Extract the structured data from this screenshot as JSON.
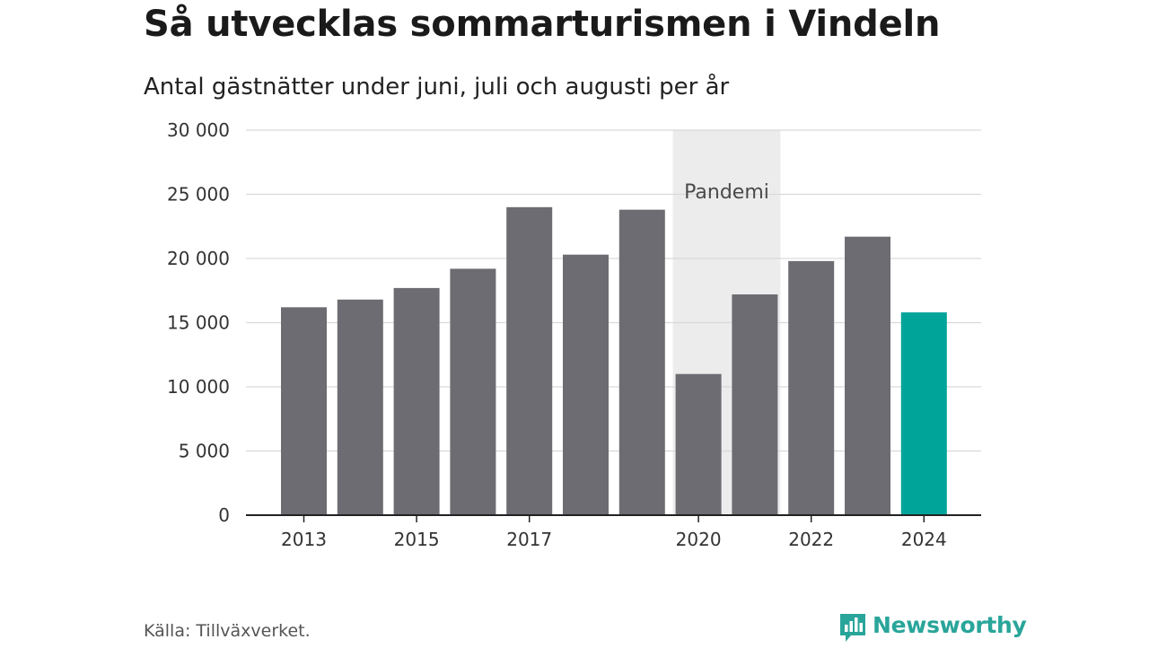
{
  "header": {
    "title": "Så utvecklas sommarturismen i Vindeln",
    "subtitle": "Antal gästnätter under juni, juli och augusti per år"
  },
  "footer": {
    "source": "Källa: Tillväxverket.",
    "brand": "Newsworthy",
    "logo_icon": "bar-chart-speech-bubble-icon"
  },
  "colors": {
    "bar_default": "#6d6c72",
    "bar_highlight": "#00a499",
    "band": "#ececec",
    "grid": "#d9d9d9",
    "axis": "#222222",
    "brand": "#29a59a"
  },
  "chart_data": {
    "type": "bar",
    "categories": [
      "2013",
      "2014",
      "2015",
      "2016",
      "2017",
      "2018",
      "2019",
      "2020",
      "2021",
      "2022",
      "2023",
      "2024"
    ],
    "values": [
      16200,
      16800,
      17700,
      19200,
      24000,
      20300,
      23800,
      11000,
      17200,
      19800,
      21700,
      15800
    ],
    "x_tick_labels": [
      "2013",
      "2015",
      "2017",
      "2020",
      "2022",
      "2024"
    ],
    "y_ticks": [
      0,
      5000,
      10000,
      15000,
      20000,
      25000,
      30000
    ],
    "y_tick_labels": [
      "0",
      "5 000",
      "10 000",
      "15 000",
      "20 000",
      "25 000",
      "30 000"
    ],
    "ylim": [
      0,
      30000
    ],
    "highlight_category": "2024",
    "band": {
      "label": "Pandemi",
      "from": "2020",
      "to": "2021"
    },
    "grid": true,
    "xlabel": "",
    "ylabel": ""
  }
}
